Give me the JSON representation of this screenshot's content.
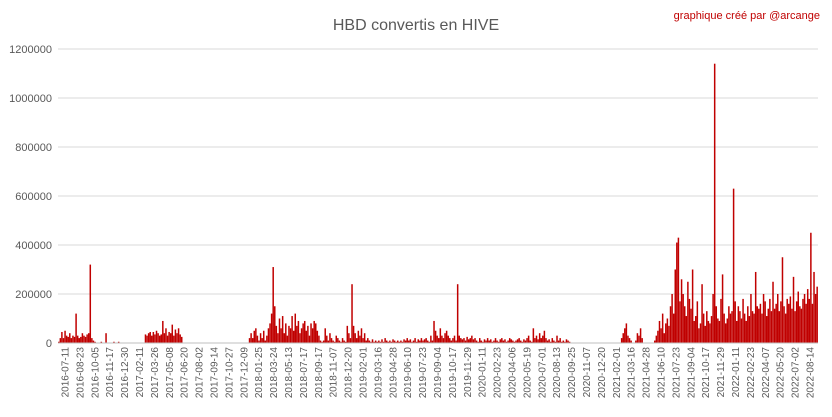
{
  "chart_data": {
    "type": "bar",
    "title": "HBD convertis en HIVE",
    "credit": "graphique créé par @arcange",
    "series_color": "#c00000",
    "ylim": [
      0,
      1200000
    ],
    "y_ticks": [
      "0",
      "200000",
      "400000",
      "600000",
      "800000",
      "1000000",
      "1200000"
    ],
    "grid": "horizontal",
    "x_tick_labels": [
      "2016-07-11",
      "2016-08-23",
      "2016-10-05",
      "2016-11-17",
      "2016-12-30",
      "2017-02-11",
      "2017-03-26",
      "2017-05-08",
      "2017-06-20",
      "2017-08-02",
      "2017-09-14",
      "2017-10-27",
      "2017-12-09",
      "2018-01-25",
      "2018-03-24",
      "2018-05-13",
      "2018-07-17",
      "2018-09-17",
      "2018-11-07",
      "2018-12-20",
      "2019-02-01",
      "2019-03-16",
      "2019-04-28",
      "2019-06-10",
      "2019-07-23",
      "2019-09-04",
      "2019-10-17",
      "2019-11-29",
      "2020-01-11",
      "2020-02-23",
      "2020-04-06",
      "2020-05-19",
      "2020-07-01",
      "2020-08-13",
      "2020-09-25",
      "2020-11-07",
      "2020-12-20",
      "2021-02-01",
      "2021-03-16",
      "2021-04-28",
      "2021-06-10",
      "2021-07-23",
      "2021-09-04",
      "2021-10-17",
      "2021-11-29",
      "2022-01-11",
      "2022-02-23",
      "2022-04-07",
      "2022-05-20",
      "2022-07-02",
      "2022-08-14"
    ],
    "values": [
      5000,
      20000,
      45000,
      20000,
      50000,
      30000,
      25000,
      40000,
      20000,
      30000,
      25000,
      120000,
      30000,
      20000,
      25000,
      40000,
      30000,
      25000,
      35000,
      40000,
      320000,
      20000,
      10000,
      5000,
      0,
      0,
      0,
      5000,
      0,
      0,
      40000,
      0,
      0,
      0,
      0,
      5000,
      0,
      0,
      5000,
      0,
      0,
      0,
      0,
      0,
      0,
      0,
      0,
      0,
      0,
      0,
      0,
      0,
      0,
      0,
      0,
      35000,
      30000,
      40000,
      45000,
      30000,
      45000,
      35000,
      50000,
      40000,
      30000,
      35000,
      90000,
      40000,
      60000,
      30000,
      45000,
      40000,
      75000,
      30000,
      55000,
      40000,
      60000,
      35000,
      25000,
      0,
      0,
      0,
      0,
      0,
      0,
      0,
      0,
      0,
      0,
      0,
      0,
      0,
      0,
      0,
      0,
      0,
      0,
      0,
      0,
      0,
      0,
      0,
      0,
      0,
      0,
      0,
      0,
      0,
      0,
      0,
      0,
      0,
      0,
      0,
      0,
      0,
      0,
      0,
      0,
      0,
      0,
      20000,
      40000,
      20000,
      50000,
      60000,
      30000,
      10000,
      40000,
      20000,
      50000,
      10000,
      30000,
      60000,
      80000,
      120000,
      310000,
      150000,
      70000,
      40000,
      100000,
      60000,
      110000,
      40000,
      80000,
      30000,
      70000,
      60000,
      110000,
      50000,
      120000,
      70000,
      90000,
      40000,
      60000,
      80000,
      90000,
      50000,
      70000,
      30000,
      80000,
      60000,
      90000,
      80000,
      50000,
      30000,
      10000,
      5000,
      10000,
      60000,
      30000,
      10000,
      40000,
      20000,
      10000,
      5000,
      30000,
      20000,
      10000,
      5000,
      20000,
      10000,
      5000,
      70000,
      40000,
      20000,
      240000,
      70000,
      40000,
      20000,
      50000,
      30000,
      60000,
      20000,
      40000,
      10000,
      20000,
      10000,
      5000,
      15000,
      5000,
      10000,
      5000,
      10000,
      5000,
      15000,
      5000,
      20000,
      10000,
      5000,
      10000,
      5000,
      15000,
      10000,
      5000,
      10000,
      5000,
      10000,
      5000,
      15000,
      10000,
      20000,
      10000,
      15000,
      5000,
      10000,
      20000,
      5000,
      15000,
      10000,
      20000,
      10000,
      15000,
      20000,
      10000,
      5000,
      30000,
      10000,
      90000,
      50000,
      30000,
      20000,
      60000,
      30000,
      20000,
      40000,
      50000,
      30000,
      20000,
      10000,
      20000,
      30000,
      10000,
      240000,
      30000,
      20000,
      15000,
      20000,
      10000,
      25000,
      15000,
      20000,
      30000,
      15000,
      20000,
      10000,
      5000,
      20000,
      10000,
      5000,
      15000,
      10000,
      20000,
      10000,
      15000,
      5000,
      10000,
      20000,
      10000,
      5000,
      15000,
      20000,
      10000,
      15000,
      5000,
      10000,
      20000,
      15000,
      10000,
      5000,
      10000,
      15000,
      20000,
      10000,
      5000,
      15000,
      10000,
      20000,
      30000,
      10000,
      5000,
      60000,
      20000,
      30000,
      15000,
      40000,
      20000,
      30000,
      50000,
      20000,
      10000,
      15000,
      5000,
      20000,
      10000,
      5000,
      30000,
      10000,
      20000,
      5000,
      10000,
      5000,
      15000,
      10000,
      5000,
      0,
      0,
      0,
      0,
      0,
      0,
      0,
      0,
      0,
      0,
      0,
      0,
      0,
      0,
      0,
      0,
      0,
      0,
      0,
      0,
      0,
      0,
      0,
      0,
      0,
      0,
      0,
      0,
      0,
      0,
      0,
      0,
      20000,
      40000,
      60000,
      80000,
      30000,
      20000,
      10000,
      0,
      0,
      10000,
      40000,
      30000,
      60000,
      20000,
      0,
      0,
      0,
      0,
      0,
      0,
      0,
      10000,
      30000,
      50000,
      90000,
      60000,
      120000,
      40000,
      80000,
      100000,
      70000,
      150000,
      200000,
      120000,
      300000,
      410000,
      430000,
      170000,
      260000,
      200000,
      150000,
      110000,
      250000,
      180000,
      140000,
      300000,
      90000,
      110000,
      170000,
      60000,
      80000,
      240000,
      120000,
      70000,
      130000,
      90000,
      80000,
      110000,
      200000,
      1140000,
      150000,
      100000,
      90000,
      180000,
      280000,
      120000,
      80000,
      100000,
      150000,
      120000,
      130000,
      630000,
      170000,
      90000,
      150000,
      130000,
      100000,
      180000,
      120000,
      90000,
      150000,
      110000,
      200000,
      130000,
      120000,
      290000,
      150000,
      140000,
      160000,
      120000,
      200000,
      170000,
      110000,
      140000,
      180000,
      130000,
      250000,
      140000,
      160000,
      200000,
      130000,
      170000,
      350000,
      150000,
      120000,
      180000,
      160000,
      190000,
      140000,
      270000,
      130000,
      170000,
      210000,
      150000,
      140000,
      180000,
      200000,
      160000,
      220000,
      180000,
      450000,
      160000,
      290000,
      200000,
      230000
    ]
  }
}
